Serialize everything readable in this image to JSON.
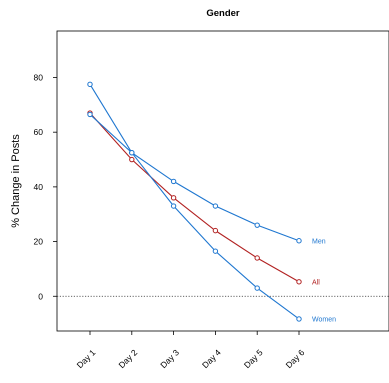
{
  "chart_data": {
    "type": "line",
    "title": "Gender",
    "ylabel": "% Change in Posts",
    "xlabel": "",
    "categories": [
      "Day 1",
      "Day 2",
      "Day 3",
      "Day 4",
      "Day 5",
      "Day 6"
    ],
    "ylim": [
      -12.7,
      97
    ],
    "yticks": [
      0,
      20,
      40,
      60,
      80
    ],
    "reference_line": 0,
    "grid": false,
    "series": [
      {
        "name": "Men",
        "color": "#1f77d0",
        "values": [
          77.5,
          52.5,
          42,
          33,
          26,
          20.3
        ]
      },
      {
        "name": "All",
        "color": "#b22222",
        "values": [
          67,
          50,
          36,
          24,
          14,
          5.3
        ]
      },
      {
        "name": "Women",
        "color": "#1f77d0",
        "values": [
          66.5,
          52.5,
          33,
          16.5,
          3,
          -8.3
        ]
      }
    ]
  }
}
